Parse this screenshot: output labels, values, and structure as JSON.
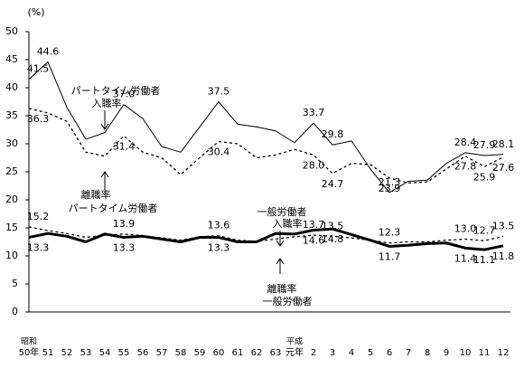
{
  "chart_data": {
    "type": "line",
    "unit_label": "(%)",
    "era_labels": [
      {
        "index": 0,
        "label": "昭和"
      },
      {
        "index": 14,
        "label": "平成"
      }
    ],
    "categories": [
      "50年",
      "51",
      "52",
      "53",
      "54",
      "55",
      "56",
      "57",
      "58",
      "59",
      "60",
      "61",
      "62",
      "63",
      "元年",
      "2",
      "3",
      "4",
      "5",
      "6",
      "7",
      "8",
      "9",
      "10",
      "11",
      "12"
    ],
    "ylim": [
      0,
      50
    ],
    "yticks": [
      0,
      5,
      10,
      15,
      20,
      25,
      30,
      35,
      40,
      45,
      50
    ],
    "series": [
      {
        "name": "パートタイム労働者 入職率",
        "color": "#000000",
        "line_style": "solid",
        "line_width": 1,
        "values": [
          41.5,
          44.6,
          36.5,
          30.8,
          32.0,
          37.0,
          34.5,
          29.5,
          28.5,
          33.0,
          37.5,
          33.5,
          33.0,
          32.3,
          30.2,
          33.7,
          29.8,
          30.5,
          25.5,
          21.3,
          23.3,
          23.5,
          26.5,
          28.4,
          27.9,
          28.1
        ],
        "value_labels": [
          "41.5",
          "44.6",
          null,
          null,
          null,
          "37.0",
          null,
          null,
          null,
          null,
          "37.5",
          null,
          null,
          null,
          null,
          "33.7",
          "29.8",
          null,
          null,
          "21.3",
          null,
          null,
          null,
          "28.4",
          "27.9",
          "28.1"
        ]
      },
      {
        "name": "パートタイム労働者 離職率",
        "color": "#000000",
        "line_style": "dotted",
        "line_width": 1.3,
        "values": [
          36.3,
          35.5,
          34.0,
          28.5,
          27.8,
          31.4,
          28.5,
          27.5,
          24.5,
          27.5,
          30.4,
          30.0,
          27.5,
          28.0,
          29.0,
          28.0,
          24.7,
          26.5,
          26.3,
          23.9,
          23.0,
          23.2,
          25.5,
          27.8,
          25.9,
          27.6
        ],
        "value_labels": [
          "36.3",
          null,
          null,
          null,
          null,
          "31.4",
          null,
          null,
          null,
          null,
          "30.4",
          null,
          null,
          null,
          null,
          "28.0",
          "24.7",
          null,
          null,
          "23.9",
          null,
          null,
          null,
          "27.8",
          "25.9",
          "27.6"
        ]
      },
      {
        "name": "一般労働者 入職率",
        "color": "#000000",
        "line_style": "solid",
        "line_width": 3,
        "values": [
          13.3,
          14.0,
          13.5,
          12.5,
          13.9,
          13.3,
          13.5,
          13.0,
          12.5,
          13.3,
          13.3,
          12.5,
          12.5,
          14.0,
          13.9,
          14.6,
          14.8,
          13.8,
          12.8,
          11.7,
          11.9,
          12.2,
          12.3,
          11.4,
          11.1,
          11.8
        ],
        "value_labels": [
          "13.3",
          null,
          null,
          null,
          null,
          "13.3",
          null,
          null,
          null,
          null,
          "13.3",
          null,
          null,
          null,
          null,
          "14.6",
          "14.8",
          null,
          null,
          "11.7",
          null,
          null,
          null,
          "11.4",
          "11.1",
          "11.8"
        ]
      },
      {
        "name": "一般労働者 離職率",
        "color": "#000000",
        "line_style": "dotted",
        "line_width": 1.3,
        "values": [
          15.2,
          14.5,
          14.0,
          13.3,
          13.7,
          13.9,
          13.6,
          13.2,
          12.8,
          13.4,
          13.6,
          12.8,
          12.6,
          13.0,
          13.4,
          13.7,
          13.5,
          13.2,
          12.8,
          12.3,
          12.5,
          12.5,
          12.8,
          13.0,
          12.7,
          13.5
        ],
        "value_labels": [
          "15.2",
          null,
          null,
          null,
          null,
          "13.9",
          null,
          null,
          null,
          null,
          "13.6",
          null,
          null,
          null,
          null,
          "13.7",
          "13.5",
          null,
          null,
          "12.3",
          null,
          null,
          null,
          "13.0",
          "12.7",
          "13.5"
        ]
      }
    ],
    "annotations": [
      [
        "パートタイム労働者",
        "入職率"
      ],
      [
        "離職率",
        "パートタイム労働者"
      ],
      [
        "一般労働者",
        "入職率"
      ],
      [
        "離職率",
        "一般労働者"
      ]
    ]
  }
}
